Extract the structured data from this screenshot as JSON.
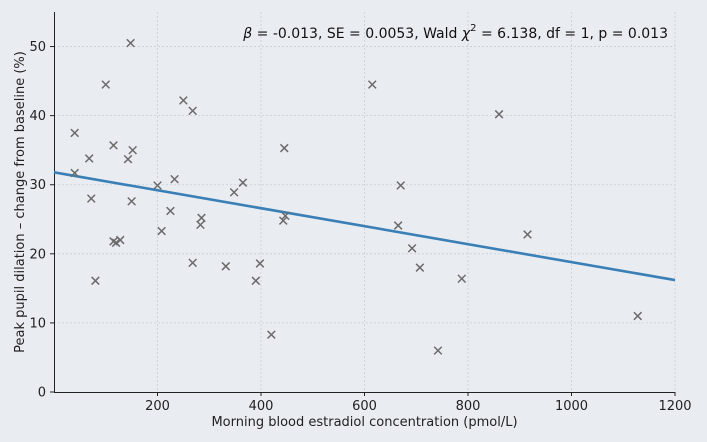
{
  "chart_data": {
    "type": "scatter",
    "annotation": {
      "beta_symbol": "β",
      "beta_rest": " = -0.013, SE = 0.0053, Wald ",
      "chi_symbol": "χ",
      "chi_sup": "2",
      "chi_rest": " = 6.138, df = 1, p = 0.013"
    },
    "xlabel": "Morning blood estradiol concentration (pmol/L)",
    "ylabel": "Peak pupil dilation – change from baseline (%)",
    "xlim": [
      0,
      1200
    ],
    "ylim": [
      0,
      55
    ],
    "xticks": [
      200,
      400,
      600,
      800,
      1000,
      1200
    ],
    "yticks": [
      0,
      10,
      20,
      30,
      40,
      50
    ],
    "grid": true,
    "marker": "x",
    "colors": {
      "points": "#6b6b6b",
      "fit_line": "#3a7fb5",
      "background": "#e9edf2"
    },
    "points": [
      {
        "x": 40,
        "y": 37.5
      },
      {
        "x": 40,
        "y": 31.7
      },
      {
        "x": 68,
        "y": 33.8
      },
      {
        "x": 72,
        "y": 28.0
      },
      {
        "x": 80,
        "y": 16.1
      },
      {
        "x": 100,
        "y": 44.5
      },
      {
        "x": 115,
        "y": 35.7
      },
      {
        "x": 115,
        "y": 21.8
      },
      {
        "x": 120,
        "y": 21.6
      },
      {
        "x": 128,
        "y": 22.0
      },
      {
        "x": 143,
        "y": 33.7
      },
      {
        "x": 148,
        "y": 50.5
      },
      {
        "x": 150,
        "y": 27.6
      },
      {
        "x": 152,
        "y": 35.0
      },
      {
        "x": 200,
        "y": 29.9
      },
      {
        "x": 208,
        "y": 23.3
      },
      {
        "x": 225,
        "y": 26.2
      },
      {
        "x": 233,
        "y": 30.8
      },
      {
        "x": 250,
        "y": 42.2
      },
      {
        "x": 268,
        "y": 18.7
      },
      {
        "x": 268,
        "y": 40.7
      },
      {
        "x": 283,
        "y": 24.2
      },
      {
        "x": 285,
        "y": 25.2
      },
      {
        "x": 332,
        "y": 18.2
      },
      {
        "x": 348,
        "y": 28.9
      },
      {
        "x": 365,
        "y": 30.3
      },
      {
        "x": 390,
        "y": 16.1
      },
      {
        "x": 398,
        "y": 18.6
      },
      {
        "x": 420,
        "y": 8.3
      },
      {
        "x": 443,
        "y": 24.8
      },
      {
        "x": 445,
        "y": 35.3
      },
      {
        "x": 447,
        "y": 25.5
      },
      {
        "x": 615,
        "y": 44.5
      },
      {
        "x": 665,
        "y": 24.1
      },
      {
        "x": 670,
        "y": 29.9
      },
      {
        "x": 692,
        "y": 20.8
      },
      {
        "x": 707,
        "y": 18.0
      },
      {
        "x": 742,
        "y": 6.0
      },
      {
        "x": 788,
        "y": 16.4
      },
      {
        "x": 860,
        "y": 40.2
      },
      {
        "x": 915,
        "y": 22.8
      },
      {
        "x": 1128,
        "y": 11.0
      }
    ],
    "fit_line": {
      "x": [
        0,
        1200
      ],
      "y": [
        31.8,
        16.2
      ]
    }
  }
}
